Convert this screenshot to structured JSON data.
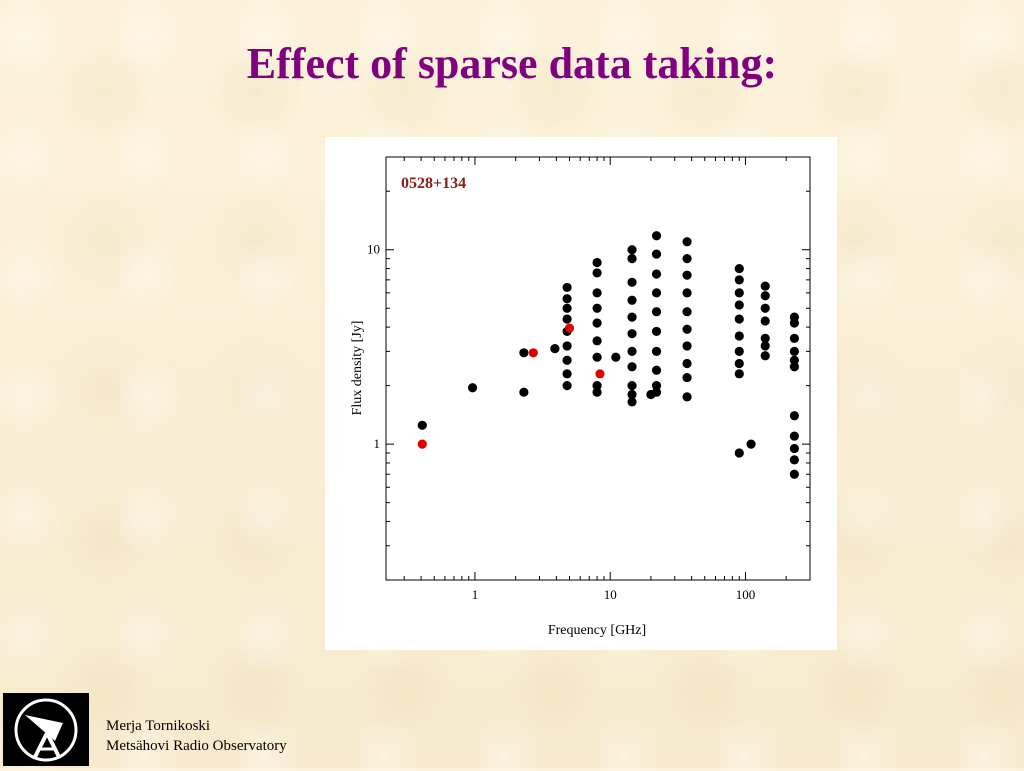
{
  "slide": {
    "title": "Effect of sparse data taking:"
  },
  "footer": {
    "author": "Merja Tornikoski",
    "institution": "Metsähovi Radio Observatory",
    "logo_icon": "radio-telescope-icon"
  },
  "colors": {
    "title": "#800080",
    "source_label": "#8b1a1a",
    "highlight_points": "#e00000",
    "data_points": "#000000"
  },
  "chart_data": {
    "type": "scatter",
    "source_label": "0528+134",
    "xlabel": "Frequency [GHz]",
    "ylabel": "Flux density [Jy]",
    "x_scale": "log",
    "y_scale": "log",
    "xlim": [
      0.22,
      300
    ],
    "ylim": [
      0.2,
      30
    ],
    "x_ticks": [
      {
        "value": 1,
        "label": "1"
      },
      {
        "value": 10,
        "label": "10"
      },
      {
        "value": 100,
        "label": "100"
      }
    ],
    "y_ticks": [
      {
        "value": 1,
        "label": "1"
      },
      {
        "value": 10,
        "label": "10"
      }
    ],
    "grid": false,
    "legend": "none",
    "series": [
      {
        "color": "#000000",
        "marker": "circle",
        "points": [
          [
            0.408,
            1.25
          ],
          [
            0.96,
            1.95
          ],
          [
            2.3,
            2.95
          ],
          [
            2.3,
            1.85
          ],
          [
            3.9,
            3.1
          ],
          [
            4.8,
            6.4
          ],
          [
            4.8,
            5.6
          ],
          [
            4.8,
            5.0
          ],
          [
            4.8,
            4.4
          ],
          [
            4.8,
            3.8
          ],
          [
            4.8,
            3.2
          ],
          [
            4.8,
            2.7
          ],
          [
            4.8,
            2.3
          ],
          [
            4.8,
            2.0
          ],
          [
            8.0,
            8.6
          ],
          [
            8.0,
            7.6
          ],
          [
            8.0,
            6.0
          ],
          [
            8.0,
            5.0
          ],
          [
            8.0,
            4.2
          ],
          [
            8.0,
            3.4
          ],
          [
            8.0,
            2.8
          ],
          [
            8.0,
            2.0
          ],
          [
            8.0,
            1.85
          ],
          [
            11.0,
            2.8
          ],
          [
            14.5,
            10.0
          ],
          [
            14.5,
            9.0
          ],
          [
            14.5,
            6.8
          ],
          [
            14.5,
            5.5
          ],
          [
            14.5,
            4.5
          ],
          [
            14.5,
            3.7
          ],
          [
            14.5,
            3.0
          ],
          [
            14.5,
            2.5
          ],
          [
            14.5,
            2.0
          ],
          [
            14.5,
            1.8
          ],
          [
            14.5,
            1.65
          ],
          [
            20.0,
            1.8
          ],
          [
            22.0,
            11.8
          ],
          [
            22.0,
            9.5
          ],
          [
            22.0,
            7.5
          ],
          [
            22.0,
            6.0
          ],
          [
            22.0,
            4.8
          ],
          [
            22.0,
            3.8
          ],
          [
            22.0,
            3.0
          ],
          [
            22.0,
            2.4
          ],
          [
            22.0,
            2.0
          ],
          [
            22.0,
            1.85
          ],
          [
            37.0,
            11.0
          ],
          [
            37.0,
            9.0
          ],
          [
            37.0,
            7.4
          ],
          [
            37.0,
            6.0
          ],
          [
            37.0,
            4.8
          ],
          [
            37.0,
            3.9
          ],
          [
            37.0,
            3.2
          ],
          [
            37.0,
            2.6
          ],
          [
            37.0,
            2.2
          ],
          [
            37.0,
            1.75
          ],
          [
            90.0,
            8.0
          ],
          [
            90.0,
            7.0
          ],
          [
            90.0,
            6.0
          ],
          [
            90.0,
            5.2
          ],
          [
            90.0,
            4.4
          ],
          [
            90.0,
            3.6
          ],
          [
            90.0,
            3.0
          ],
          [
            90.0,
            2.6
          ],
          [
            90.0,
            2.3
          ],
          [
            90.0,
            0.9
          ],
          [
            110.0,
            1.0
          ],
          [
            140.0,
            6.5
          ],
          [
            140.0,
            5.8
          ],
          [
            140.0,
            5.0
          ],
          [
            140.0,
            4.3
          ],
          [
            140.0,
            3.5
          ],
          [
            140.0,
            3.2
          ],
          [
            140.0,
            2.85
          ],
          [
            230.0,
            4.5
          ],
          [
            230.0,
            4.2
          ],
          [
            230.0,
            3.5
          ],
          [
            230.0,
            3.0
          ],
          [
            230.0,
            2.7
          ],
          [
            230.0,
            2.5
          ],
          [
            230.0,
            1.4
          ],
          [
            230.0,
            1.1
          ],
          [
            230.0,
            0.95
          ],
          [
            230.0,
            0.83
          ],
          [
            230.0,
            0.7
          ]
        ]
      },
      {
        "color": "#e00000",
        "marker": "circle",
        "points": [
          [
            0.408,
            1.0
          ],
          [
            2.7,
            2.95
          ],
          [
            5.0,
            3.95
          ],
          [
            8.4,
            2.3
          ]
        ]
      }
    ]
  }
}
